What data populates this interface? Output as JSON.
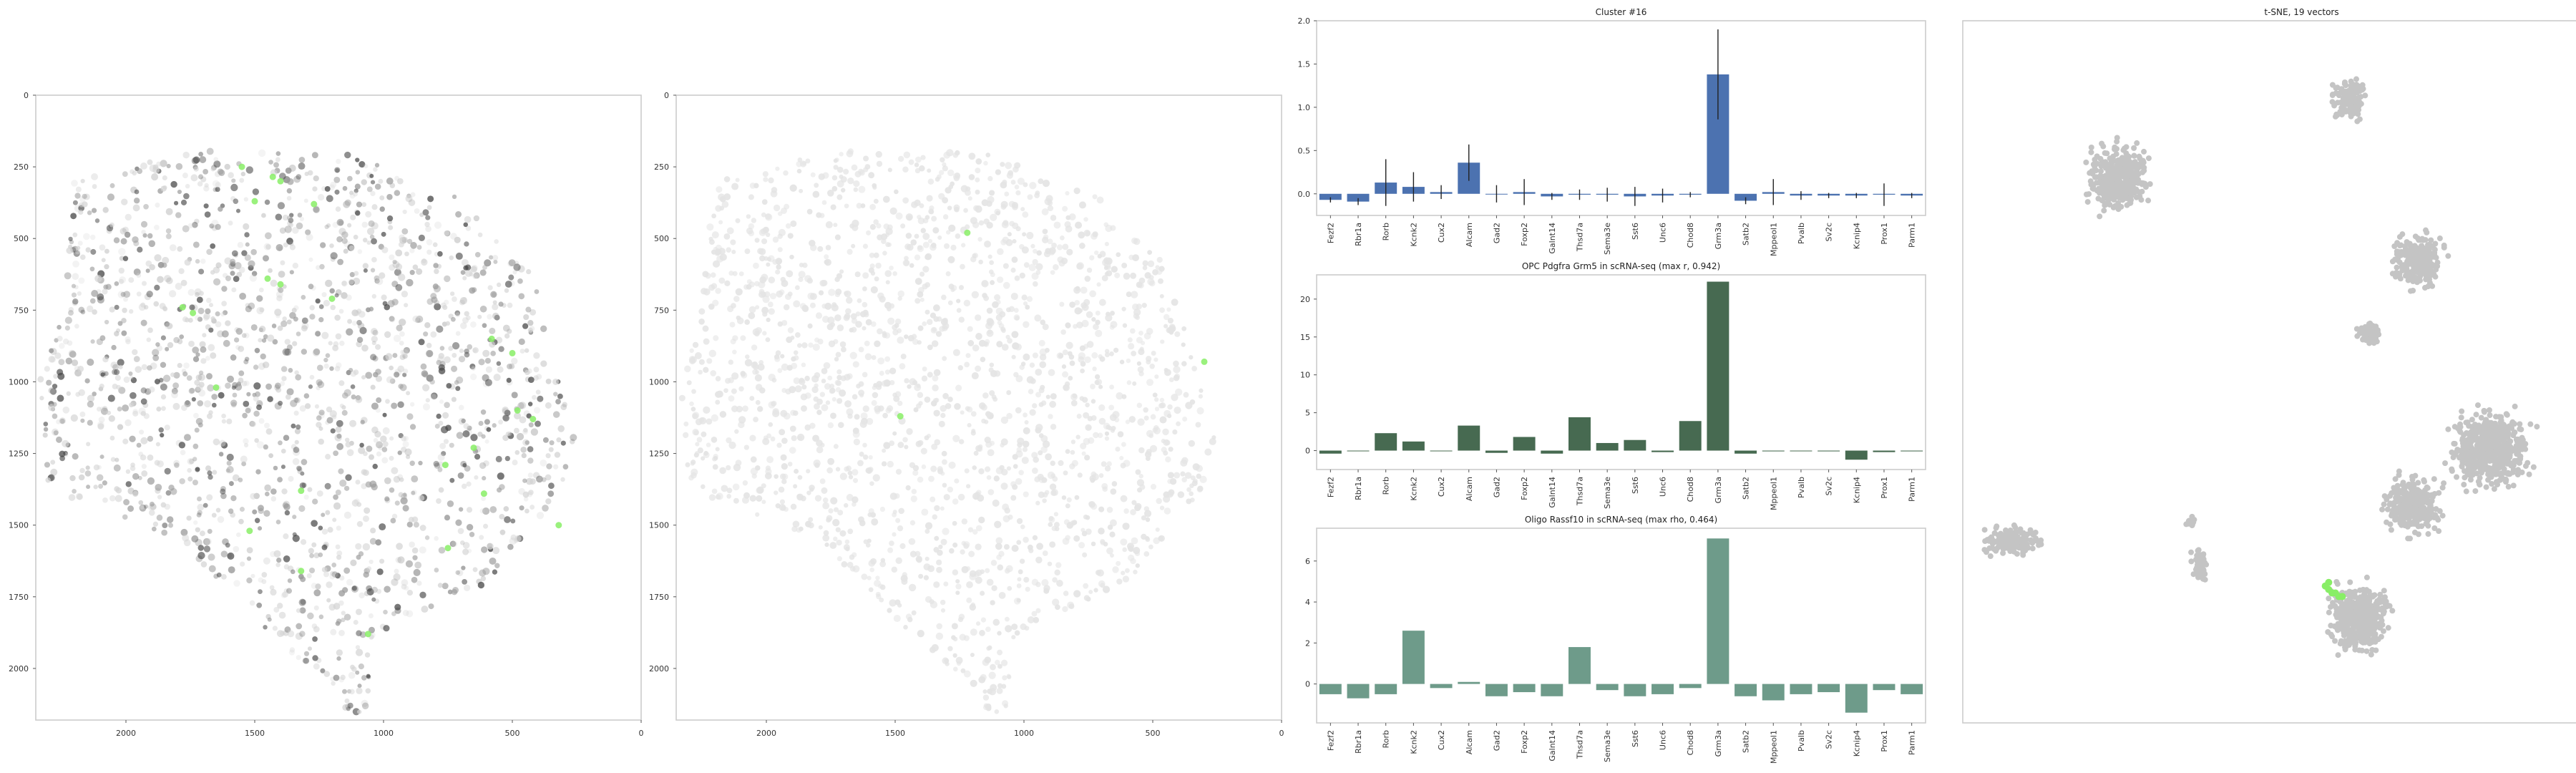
{
  "colors": {
    "bar1": "#4c72b0",
    "bar2": "#476a51",
    "bar3": "#6e9b8a",
    "tsne": "#c4c4c4",
    "highlight": "#88ee66",
    "cellLight": "#e4e4e4",
    "cellDark": "#444444"
  },
  "chart_data": [
    {
      "type": "scatter",
      "title": "",
      "xlabel": "",
      "ylabel": "",
      "xlim": [
        2350,
        0
      ],
      "ylim": [
        2180,
        0
      ],
      "xticks": [
        2000,
        1500,
        1000,
        500,
        0
      ],
      "yticks": [
        0,
        250,
        500,
        750,
        1000,
        1250,
        1500,
        1750,
        2000
      ],
      "grid": false,
      "points": [
        [
          1550,
          250
        ],
        [
          1430,
          285
        ],
        [
          1400,
          300
        ],
        [
          1500,
          370
        ],
        [
          1270,
          380
        ],
        [
          1450,
          640
        ],
        [
          1400,
          660
        ],
        [
          1200,
          710
        ],
        [
          1780,
          740
        ],
        [
          1740,
          760
        ],
        [
          580,
          850
        ],
        [
          500,
          900
        ],
        [
          1650,
          1020
        ],
        [
          420,
          1130
        ],
        [
          480,
          1100
        ],
        [
          650,
          1230
        ],
        [
          760,
          1290
        ],
        [
          1320,
          1380
        ],
        [
          610,
          1390
        ],
        [
          1520,
          1520
        ],
        [
          320,
          1500
        ],
        [
          750,
          1580
        ],
        [
          1320,
          1660
        ],
        [
          1060,
          1880
        ]
      ]
    },
    {
      "type": "scatter",
      "title": "",
      "xlabel": "",
      "ylabel": "",
      "xlim": [
        2350,
        0
      ],
      "ylim": [
        2180,
        0
      ],
      "xticks": [
        2000,
        1500,
        1000,
        500,
        0
      ],
      "yticks": [
        0,
        250,
        500,
        750,
        1000,
        1250,
        1500,
        1750,
        2000
      ],
      "grid": false,
      "points": [
        [
          300,
          930
        ],
        [
          1480,
          1120
        ],
        [
          1220,
          480
        ]
      ]
    },
    {
      "type": "bar",
      "title": "Cluster #16",
      "xlabel": "",
      "ylabel": "",
      "categories": [
        "Fezf2",
        "Rbr1a",
        "Rorb",
        "Kcnk2",
        "Cux2",
        "Alcam",
        "Gad2",
        "Foxp2",
        "Galnt14",
        "Thsd7a",
        "Sema3e",
        "Sst6",
        "Unc6",
        "Chod8",
        "Grm3a",
        "Satb2",
        "Mppeol1",
        "Pvalb",
        "Sv2c",
        "Kcnip4",
        "Prox1",
        "Parm1"
      ],
      "values": [
        -0.07,
        -0.09,
        0.13,
        0.08,
        0.02,
        0.36,
        0.0,
        0.02,
        -0.03,
        -0.01,
        -0.01,
        -0.03,
        -0.02,
        -0.01,
        1.38,
        -0.08,
        0.02,
        -0.02,
        -0.02,
        -0.02,
        -0.01,
        -0.02
      ],
      "errors": [
        0.03,
        0.04,
        0.27,
        0.17,
        0.08,
        0.21,
        0.1,
        0.15,
        0.04,
        0.06,
        0.08,
        0.11,
        0.08,
        0.03,
        0.52,
        0.04,
        0.15,
        0.05,
        0.03,
        0.03,
        0.13,
        0.03
      ],
      "ylim": [
        -0.25,
        2.0
      ],
      "yticks": [
        0.0,
        0.5,
        1.0,
        1.5,
        2.0
      ],
      "grid": false
    },
    {
      "type": "bar",
      "title": "OPC Pdgfra Grm5 in scRNA-seq (max r, 0.942)",
      "xlabel": "",
      "ylabel": "",
      "categories": [
        "Fezf2",
        "Rbr1a",
        "Rorb",
        "Kcnk2",
        "Cux2",
        "Alcam",
        "Gad2",
        "Foxp2",
        "Galnt14",
        "Thsd7a",
        "Sema3e",
        "Sst6",
        "Unc6",
        "Chod8",
        "Grm3a",
        "Satb2",
        "Mppeol1",
        "Pvalb",
        "Sv2c",
        "Kcnip4",
        "Prox1",
        "Parm1"
      ],
      "values": [
        -0.4,
        0.0,
        2.3,
        1.2,
        0.0,
        3.3,
        -0.3,
        1.8,
        -0.4,
        4.4,
        1.0,
        1.4,
        -0.2,
        3.9,
        22.3,
        -0.4,
        -0.1,
        0.0,
        -0.1,
        -1.2,
        -0.2,
        -0.1
      ],
      "ylim": [
        -2.5,
        23.2
      ],
      "yticks": [
        0,
        5,
        10,
        15,
        20
      ],
      "grid": false
    },
    {
      "type": "bar",
      "title": "Oligo Rassf10 in scRNA-seq (max rho, 0.464)",
      "xlabel": "",
      "ylabel": "",
      "categories": [
        "Fezf2",
        "Rbr1a",
        "Rorb",
        "Kcnk2",
        "Cux2",
        "Alcam",
        "Gad2",
        "Foxp2",
        "Galnt14",
        "Thsd7a",
        "Sema3e",
        "Sst6",
        "Unc6",
        "Chod8",
        "Grm3a",
        "Satb2",
        "Mppeol1",
        "Pvalb",
        "Sv2c",
        "Kcnip4",
        "Prox1",
        "Parm1"
      ],
      "values": [
        -0.5,
        -0.7,
        -0.5,
        2.6,
        -0.2,
        0.1,
        -0.6,
        -0.4,
        -0.6,
        1.8,
        -0.3,
        -0.6,
        -0.5,
        -0.2,
        7.1,
        -0.6,
        -0.8,
        -0.5,
        -0.4,
        -1.4,
        -0.3,
        -0.5
      ],
      "ylim": [
        -1.9,
        7.6
      ],
      "yticks": [
        0,
        2,
        4,
        6
      ],
      "grid": false
    },
    {
      "type": "scatter",
      "title": "t-SNE, 19 vectors",
      "xlabel": "",
      "ylabel": "",
      "xlim": [
        -100,
        100
      ],
      "ylim": [
        -100,
        100
      ],
      "grid": false,
      "clusters": [
        {
          "cx": 14,
          "cy": 78,
          "rx": 6,
          "ry": 7
        },
        {
          "cx": -54,
          "cy": 55,
          "rx": 11,
          "ry": 11
        },
        {
          "cx": 34,
          "cy": 32,
          "rx": 9,
          "ry": 9
        },
        {
          "cx": 20,
          "cy": 11,
          "rx": 4,
          "ry": 4
        },
        {
          "cx": 56,
          "cy": -22,
          "rx": 14,
          "ry": 13
        },
        {
          "cx": 33,
          "cy": -38,
          "rx": 10,
          "ry": 10
        },
        {
          "cx": 17,
          "cy": -70,
          "rx": 11,
          "ry": 12
        },
        {
          "cx": -85,
          "cy": -48,
          "rx": 11,
          "ry": 5
        },
        {
          "cx": -30,
          "cy": -55,
          "rx": 3,
          "ry": 6
        },
        {
          "cx": -33,
          "cy": -43,
          "rx": 2,
          "ry": 2
        }
      ],
      "highlight": [
        [
          7,
          -61
        ],
        [
          8,
          -62
        ],
        [
          9,
          -63
        ],
        [
          10,
          -63
        ],
        [
          11,
          -64
        ],
        [
          8,
          -60
        ],
        [
          12,
          -64
        ]
      ]
    }
  ]
}
